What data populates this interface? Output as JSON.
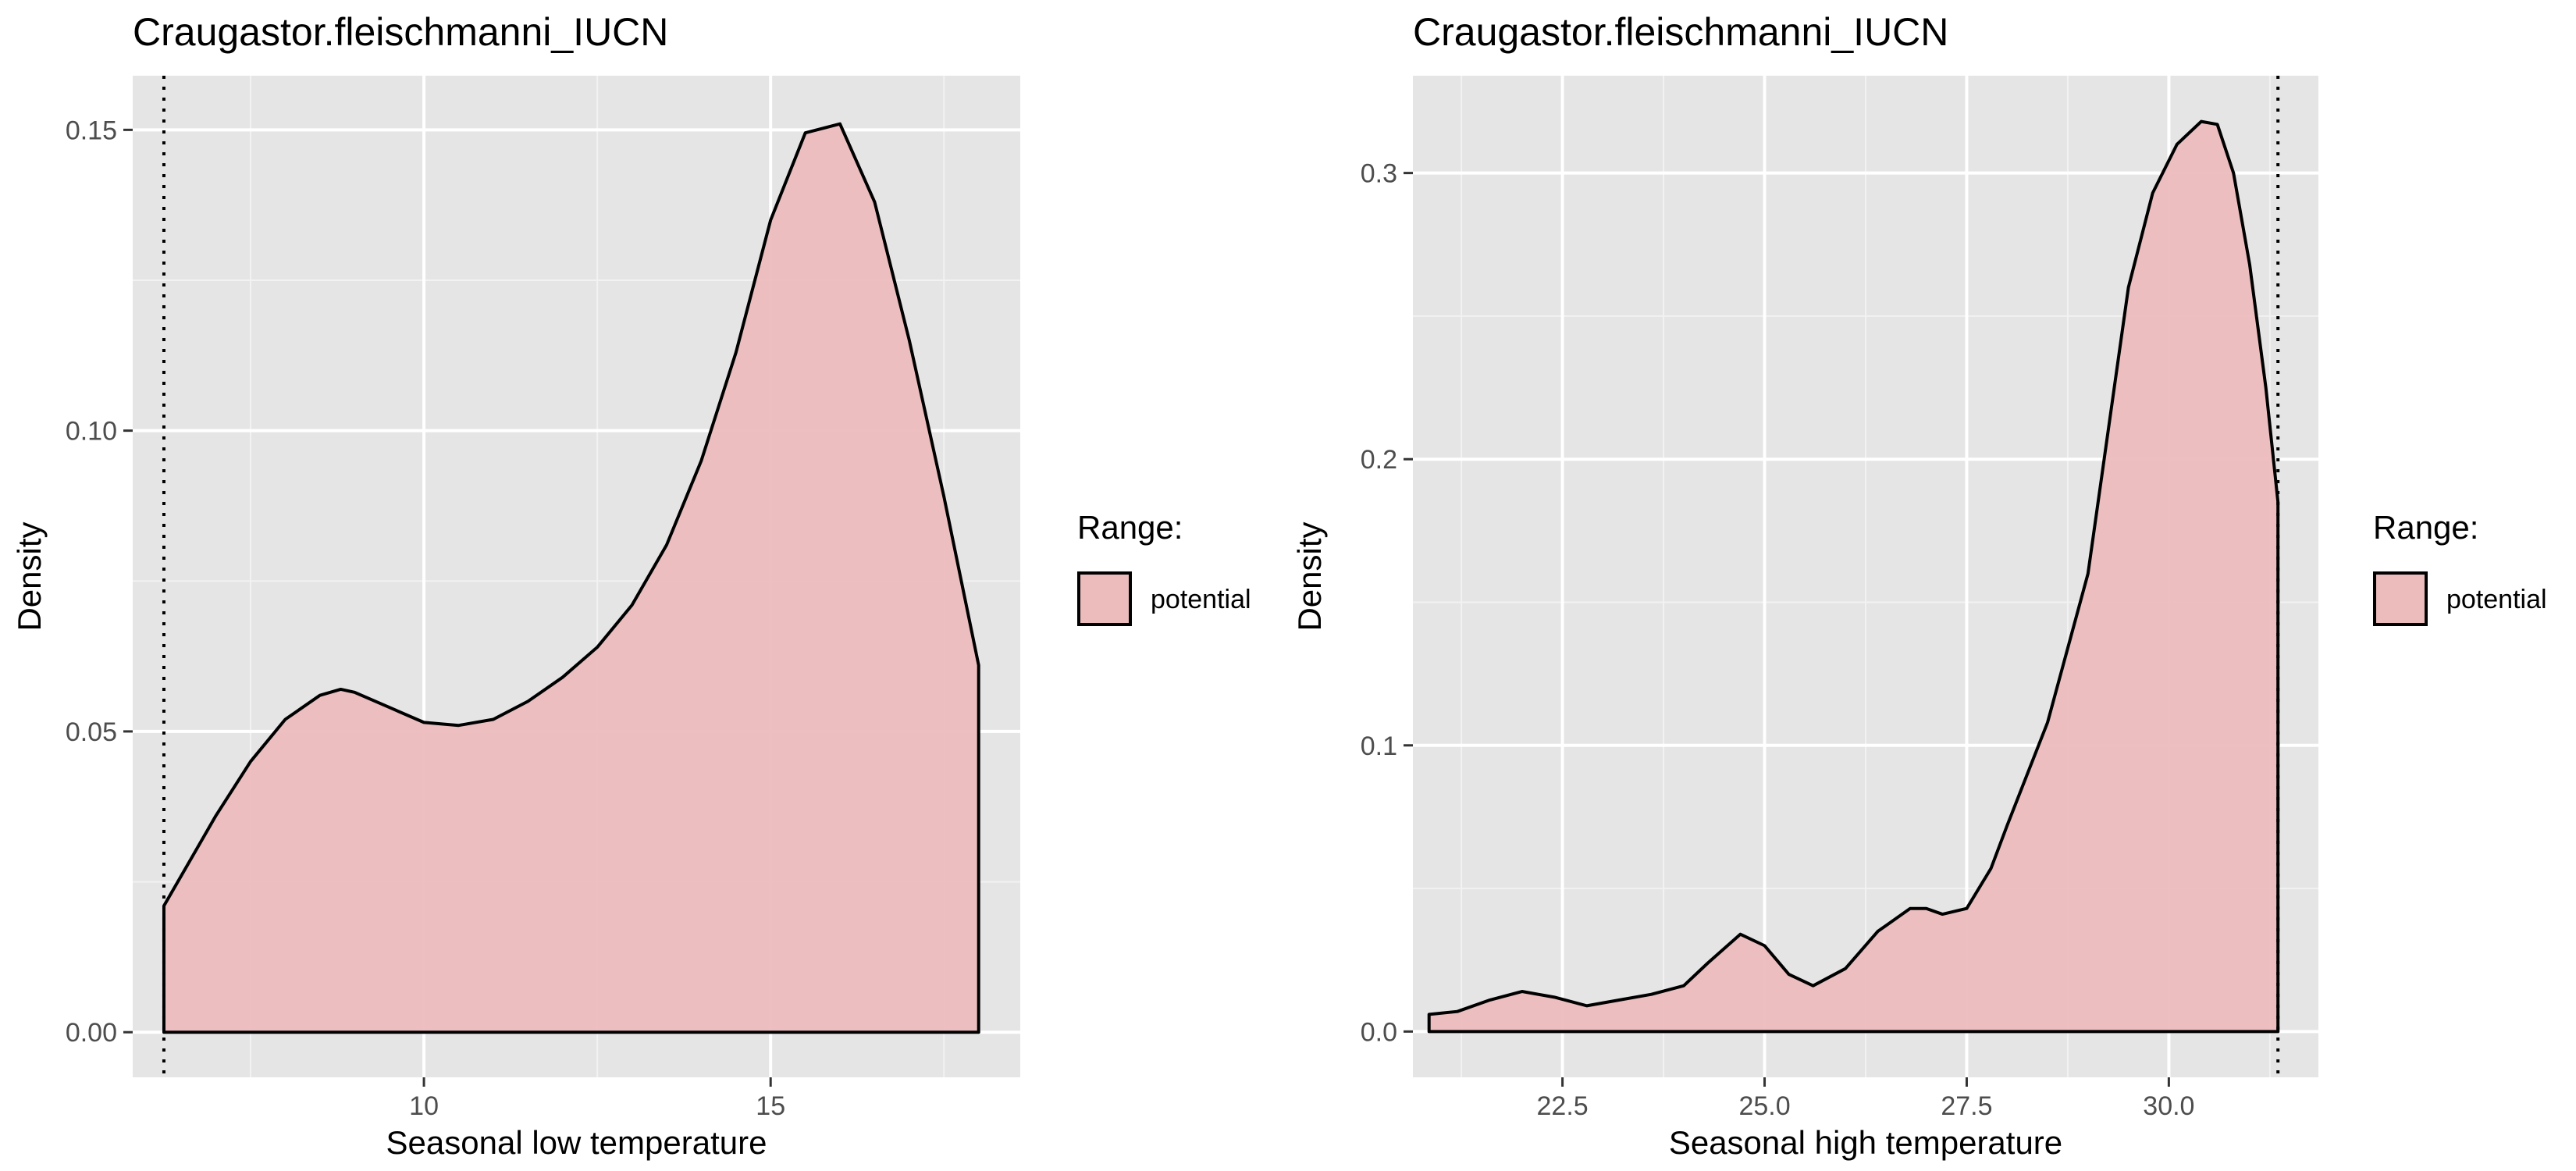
{
  "chart_data": [
    {
      "type": "area",
      "title": "Craugastor.fleischmanni_IUCN",
      "xlabel": "Seasonal low temperature",
      "ylabel": "Density",
      "xlim": [
        5.8,
        18.6
      ],
      "ylim": [
        -0.0075,
        0.159
      ],
      "x_ticks": [
        10,
        15
      ],
      "x_tick_labels": [
        "10",
        "15"
      ],
      "y_ticks": [
        0,
        0.05,
        0.1,
        0.15
      ],
      "y_tick_labels": [
        "0.00",
        "0.05",
        "0.10",
        "0.15"
      ],
      "grid": true,
      "reference_line_x": 6.25,
      "legend": {
        "title": "Range:",
        "position": "right",
        "entries": [
          "potential"
        ]
      },
      "fill_color": "#ecbcbd",
      "series": [
        {
          "name": "potential",
          "x": [
            6.25,
            6.5,
            7.0,
            7.5,
            8.0,
            8.5,
            8.8,
            9.0,
            9.5,
            10.0,
            10.5,
            11.0,
            11.5,
            12.0,
            12.5,
            13.0,
            13.5,
            14.0,
            14.5,
            15.0,
            15.5,
            16.0,
            16.5,
            17.0,
            17.5,
            18.0
          ],
          "y": [
            0.021,
            0.026,
            0.036,
            0.045,
            0.052,
            0.056,
            0.057,
            0.0565,
            0.054,
            0.0515,
            0.051,
            0.052,
            0.055,
            0.059,
            0.064,
            0.071,
            0.081,
            0.095,
            0.113,
            0.135,
            0.1495,
            0.151,
            0.138,
            0.115,
            0.089,
            0.061
          ]
        }
      ]
    },
    {
      "type": "area",
      "title": "Craugastor.fleischmanni_IUCN",
      "xlabel": "Seasonal high temperature",
      "ylabel": "Density",
      "xlim": [
        20.65,
        31.85
      ],
      "ylim": [
        -0.016,
        0.334
      ],
      "x_ticks": [
        22.5,
        25.0,
        27.5,
        30.0
      ],
      "x_tick_labels": [
        "22.5",
        "25.0",
        "27.5",
        "30.0"
      ],
      "y_ticks": [
        0,
        0.1,
        0.2,
        0.3
      ],
      "y_tick_labels": [
        "0.0",
        "0.1",
        "0.2",
        "0.3"
      ],
      "grid": true,
      "reference_line_x": 31.35,
      "legend": {
        "title": "Range:",
        "position": "right",
        "entries": [
          "potential"
        ]
      },
      "fill_color": "#ecbcbd",
      "series": [
        {
          "name": "potential",
          "x": [
            20.85,
            21.2,
            21.6,
            22.0,
            22.4,
            22.8,
            23.2,
            23.6,
            24.0,
            24.3,
            24.7,
            25.0,
            25.3,
            25.6,
            26.0,
            26.4,
            26.8,
            27.0,
            27.2,
            27.5,
            27.8,
            28.0,
            28.5,
            29.0,
            29.3,
            29.5,
            29.8,
            30.1,
            30.4,
            30.6,
            30.8,
            31.0,
            31.2,
            31.35
          ],
          "y": [
            0.006,
            0.007,
            0.011,
            0.014,
            0.012,
            0.009,
            0.011,
            0.013,
            0.016,
            0.024,
            0.034,
            0.03,
            0.02,
            0.016,
            0.022,
            0.035,
            0.043,
            0.043,
            0.041,
            0.043,
            0.057,
            0.072,
            0.108,
            0.16,
            0.22,
            0.26,
            0.293,
            0.31,
            0.318,
            0.317,
            0.3,
            0.268,
            0.225,
            0.185
          ]
        }
      ]
    }
  ]
}
